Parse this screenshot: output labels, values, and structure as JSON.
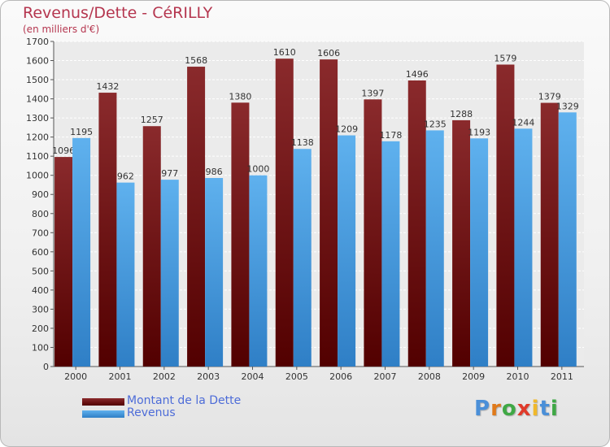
{
  "chart_data": {
    "type": "bar",
    "title": "Revenus/Dette - CéRILLY",
    "subtitle": "(en milliers d'€)",
    "categories": [
      "2000",
      "2001",
      "2002",
      "2003",
      "2004",
      "2005",
      "2006",
      "2007",
      "2008",
      "2009",
      "2010",
      "2011"
    ],
    "series": [
      {
        "name": "Montant de la Dette",
        "color": "#7a0f10",
        "values": [
          1096,
          1432,
          1257,
          1568,
          1380,
          1610,
          1606,
          1397,
          1496,
          1288,
          1579,
          1379
        ]
      },
      {
        "name": "Revenus",
        "color": "#4fa3e2",
        "values": [
          1195,
          962,
          977,
          986,
          1000,
          1138,
          1209,
          1178,
          1235,
          1193,
          1244,
          1329
        ]
      }
    ],
    "ylim": [
      0,
      1700
    ],
    "ytick_step": 100,
    "grid": true,
    "legend": "bottom-left"
  },
  "logo": {
    "text": "Proxiti",
    "letters": [
      "P",
      "r",
      "o",
      "x",
      "i",
      "t",
      "i"
    ],
    "colors": [
      "#4a8fd8",
      "#e07a1a",
      "#3fa845",
      "#e03a2a",
      "#f0b82a",
      "#4a8fd8",
      "#3fa845"
    ]
  }
}
